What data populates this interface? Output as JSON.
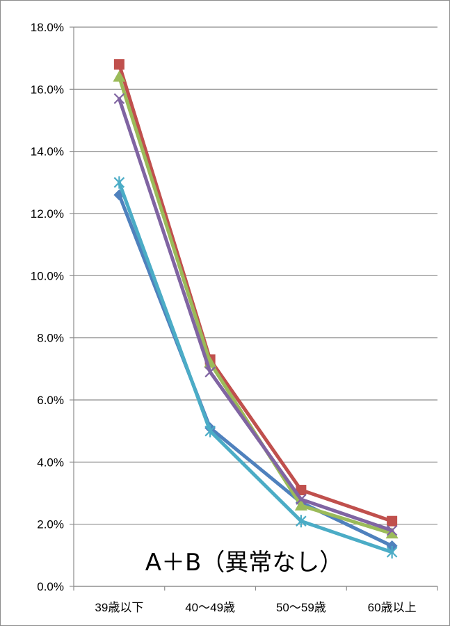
{
  "chart_data": {
    "type": "line",
    "title": "",
    "xlabel": "",
    "ylabel": "",
    "categories": [
      "39歳以下",
      "40～49歳",
      "50～59歳",
      "60歳以上"
    ],
    "ylim": [
      0,
      0.18
    ],
    "y_ticks": [
      "0.0%",
      "2.0%",
      "4.0%",
      "6.0%",
      "8.0%",
      "10.0%",
      "12.0%",
      "14.0%",
      "16.0%",
      "18.0%"
    ],
    "grid": true,
    "legend": "none",
    "annotation": "A＋B（異常なし）",
    "series": [
      {
        "color": "#4F81BD",
        "marker": "diamond",
        "values": [
          0.126,
          0.051,
          0.027,
          0.013
        ]
      },
      {
        "color": "#C0504D",
        "marker": "square",
        "values": [
          0.168,
          0.073,
          0.031,
          0.021
        ]
      },
      {
        "color": "#9BBB59",
        "marker": "triangle",
        "values": [
          0.164,
          0.072,
          0.026,
          0.017
        ]
      },
      {
        "color": "#8064A2",
        "marker": "x",
        "values": [
          0.157,
          0.069,
          0.028,
          0.018
        ]
      },
      {
        "color": "#4BACC6",
        "marker": "star",
        "values": [
          0.13,
          0.05,
          0.021,
          0.011
        ]
      }
    ]
  }
}
